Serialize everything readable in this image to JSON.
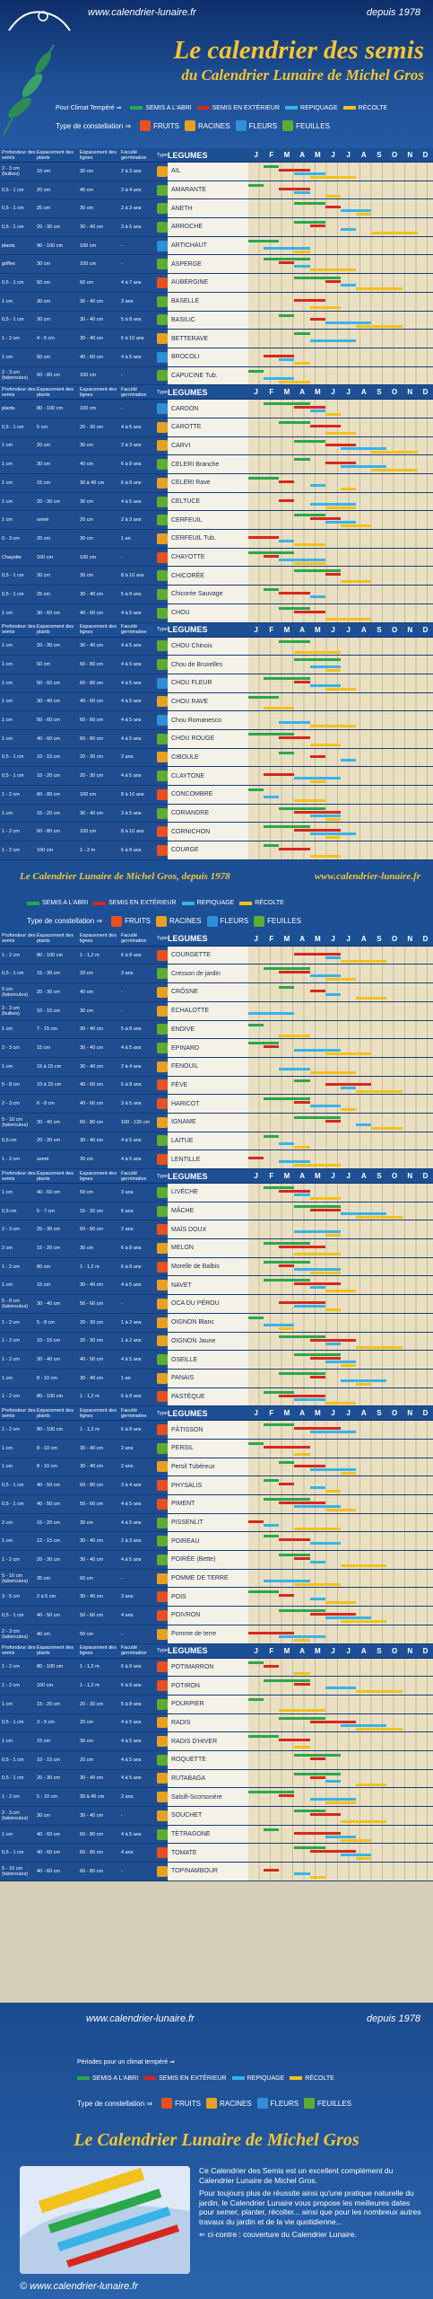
{
  "header": {
    "site": "www.calendrier-lunaire.fr",
    "since": "depuis 1978",
    "title_line1": "Le calendrier des semis",
    "title_line2": "du Calendrier Lunaire de Michel Gros"
  },
  "legend": {
    "climate_label": "Pour Climat Tempéré ⇒",
    "periods": [
      {
        "label": "SEMIS A L'ABRI",
        "color": "#2aa84a"
      },
      {
        "label": "SEMIS EN EXTÉRIEUR",
        "color": "#d6281f"
      },
      {
        "label": "REPIQUAGE",
        "color": "#38b3e6"
      },
      {
        "label": "RÉCOLTE",
        "color": "#f2c21c"
      }
    ],
    "constellation_label": "Type de constellation ⇒",
    "constellations": [
      {
        "label": "FRUITS",
        "color": "#e8501f"
      },
      {
        "label": "RACINES",
        "color": "#e8a11f"
      },
      {
        "label": "FLEURS",
        "color": "#2f8fd8"
      },
      {
        "label": "FEUILLES",
        "color": "#5cae2f"
      }
    ]
  },
  "table_header": {
    "depth": "Profondeur des semis",
    "spacing_plants": "Espacement des plants",
    "spacing_rows": "Espacement des lignes",
    "germination": "Faculté germinative",
    "type": "Type",
    "vegetables": "LEGUMES",
    "months": [
      "J",
      "F",
      "M",
      "A",
      "M",
      "J",
      "J",
      "A",
      "S",
      "O",
      "N",
      "D"
    ]
  },
  "rows": [
    {
      "d": "2 - 3 cm (bulbes)",
      "p": "10 cm",
      "l": "30 cm",
      "g": "2 à 3 ans",
      "t": "#e8a11f",
      "n": "AIL"
    },
    {
      "d": "0,5 - 1 cm",
      "p": "20 cm",
      "l": "40 cm",
      "g": "3 à 4 ans",
      "t": "#5cae2f",
      "n": "AMARANTE"
    },
    {
      "d": "0,5 - 1 cm",
      "p": "25 cm",
      "l": "30 cm",
      "g": "2 à 3 ans",
      "t": "#5cae2f",
      "n": "ANETH"
    },
    {
      "d": "0,5 - 1 cm",
      "p": "20 - 30 cm",
      "l": "30 - 40 cm",
      "g": "3 à 5 ans",
      "t": "#5cae2f",
      "n": "ARROCHE"
    },
    {
      "d": "plants",
      "p": "90 - 100 cm",
      "l": "100 cm",
      "g": "-",
      "t": "#2f8fd8",
      "n": "ARTICHAUT"
    },
    {
      "d": "griffes",
      "p": "30 cm",
      "l": "100 cm",
      "g": "-",
      "t": "#5cae2f",
      "n": "ASPERGE"
    },
    {
      "d": "0,5 - 1 cm",
      "p": "50 cm",
      "l": "60 cm",
      "g": "4 à 7 ans",
      "t": "#e8501f",
      "n": "AUBERGINE"
    },
    {
      "d": "1 cm",
      "p": "30 cm",
      "l": "30 - 40 cm",
      "g": "3 ans",
      "t": "#5cae2f",
      "n": "BASELLE"
    },
    {
      "d": "0,5 - 1 cm",
      "p": "30 cm",
      "l": "30 - 40 cm",
      "g": "5 à 8 ans",
      "t": "#5cae2f",
      "n": "BASILIC"
    },
    {
      "d": "1 - 2 cm",
      "p": "4 - 5 cm",
      "l": "30 - 40 cm",
      "g": "6 à 10 ans",
      "t": "#e8a11f",
      "n": "BETTERAVE"
    },
    {
      "d": "1 cm",
      "p": "50 cm",
      "l": "40 - 60 cm",
      "g": "4 à 5 ans",
      "t": "#2f8fd8",
      "n": "BROCOLI"
    },
    {
      "d": "2 - 3 cm (tubercules)",
      "p": "60 - 80 cm",
      "l": "100 cm",
      "g": "-",
      "t": "#5cae2f",
      "n": "CAPUCINE Tub."
    }
  ],
  "rows2": [
    {
      "d": "plants",
      "p": "80 - 100 cm",
      "l": "100 cm",
      "g": "-",
      "t": "#2f8fd8",
      "n": "CARDON"
    },
    {
      "d": "0,5 - 1 cm",
      "p": "5 cm",
      "l": "20 - 30 cm",
      "g": "4 à 5 ans",
      "t": "#e8a11f",
      "n": "CAROTTE"
    },
    {
      "d": "1 cm",
      "p": "20 cm",
      "l": "30 cm",
      "g": "2 à 3 ans",
      "t": "#e8a11f",
      "n": "CARVI"
    },
    {
      "d": "1 cm",
      "p": "30 cm",
      "l": "40 cm",
      "g": "6 à 8 ans",
      "t": "#5cae2f",
      "n": "CELERI Branche"
    },
    {
      "d": "1 cm",
      "p": "15 cm",
      "l": "30 à 40 cm",
      "g": "6 à 8 ans",
      "t": "#e8a11f",
      "n": "CELERI Rave"
    },
    {
      "d": "1 cm",
      "p": "20 - 30 cm",
      "l": "30 cm",
      "g": "4 à 5 ans",
      "t": "#5cae2f",
      "n": "CELTUCE"
    },
    {
      "d": "1 cm",
      "p": "semé",
      "l": "20 cm",
      "g": "2 à 3 ans",
      "t": "#5cae2f",
      "n": "CERFEUIL"
    },
    {
      "d": "0 - 3 cm",
      "p": "20 cm",
      "l": "30 cm",
      "g": "1 an",
      "t": "#e8a11f",
      "n": "CERFEUIL Tub."
    },
    {
      "d": "Chayotte",
      "p": "100 cm",
      "l": "100 cm",
      "g": "-",
      "t": "#e8501f",
      "n": "CHAYOTTE"
    },
    {
      "d": "0,5 - 1 cm",
      "p": "30 cm",
      "l": "30 cm",
      "g": "8 à 10 ans",
      "t": "#5cae2f",
      "n": "CHICORÉE"
    },
    {
      "d": "0,5 - 1 cm",
      "p": "25 cm",
      "l": "30 - 40 cm",
      "g": "5 à 8 ans",
      "t": "#5cae2f",
      "n": "Chicorée Sauvage"
    },
    {
      "d": "1 cm",
      "p": "30 - 60 cm",
      "l": "40 - 60 cm",
      "g": "4 à 5 ans",
      "t": "#5cae2f",
      "n": "CHOU"
    }
  ],
  "rows3": [
    {
      "d": "1 cm",
      "p": "20 - 30 cm",
      "l": "30 - 40 cm",
      "g": "4 à 5 ans",
      "t": "#5cae2f",
      "n": "CHOU Chinois"
    },
    {
      "d": "1 cm",
      "p": "50 cm",
      "l": "60 - 80 cm",
      "g": "4 à 5 ans",
      "t": "#5cae2f",
      "n": "Chou de Bruxelles"
    },
    {
      "d": "1 cm",
      "p": "50 - 60 cm",
      "l": "60 - 80 cm",
      "g": "4 à 5 ans",
      "t": "#2f8fd8",
      "n": "CHOU FLEUR"
    },
    {
      "d": "1 cm",
      "p": "30 - 40 cm",
      "l": "40 - 60 cm",
      "g": "4 à 5 ans",
      "t": "#e8a11f",
      "n": "CHOU RAVE"
    },
    {
      "d": "1 cm",
      "p": "50 - 60 cm",
      "l": "60 - 80 cm",
      "g": "4 à 5 ans",
      "t": "#2f8fd8",
      "n": "Chou Romanesco"
    },
    {
      "d": "1 cm",
      "p": "40 - 60 cm",
      "l": "60 - 80 cm",
      "g": "4 à 5 ans",
      "t": "#5cae2f",
      "n": "CHOU ROUGE"
    },
    {
      "d": "0,5 - 1 cm",
      "p": "10 - 15 cm",
      "l": "20 - 30 cm",
      "g": "2 ans",
      "t": "#e8a11f",
      "n": "CIBOULE"
    },
    {
      "d": "0,5 - 1 cm",
      "p": "10 - 20 cm",
      "l": "20 - 30 cm",
      "g": "4 à 5 ans",
      "t": "#5cae2f",
      "n": "CLAYTONE"
    },
    {
      "d": "1 - 2 cm",
      "p": "60 - 80 cm",
      "l": "100 cm",
      "g": "8 à 10 ans",
      "t": "#e8501f",
      "n": "CONCOMBRE"
    },
    {
      "d": "1 cm",
      "p": "15 - 20 cm",
      "l": "30 - 40 cm",
      "g": "3 à 5 ans",
      "t": "#5cae2f",
      "n": "CORIANDRE"
    },
    {
      "d": "1 - 2 cm",
      "p": "60 - 80 cm",
      "l": "100 cm",
      "g": "8 à 10 ans",
      "t": "#e8501f",
      "n": "CORNICHON"
    },
    {
      "d": "1 - 2 cm",
      "p": "100 cm",
      "l": "1 - 2 m",
      "g": "6 à 8 ans",
      "t": "#e8501f",
      "n": "COURGE"
    }
  ],
  "banner": {
    "left": "Le Calendrier Lunaire de Michel Gros, depuis 1978",
    "right": "www.calendrier-lunaire.fr"
  },
  "rows4": [
    {
      "d": "1 - 2 cm",
      "p": "80 - 100 cm",
      "l": "1 - 1,2 m",
      "g": "6 à 8 ans",
      "t": "#e8501f",
      "n": "COURGETTE"
    },
    {
      "d": "0,5 - 1 cm",
      "p": "15 - 30 cm",
      "l": "20 cm",
      "g": "3 ans",
      "t": "#5cae2f",
      "n": "Cresson de jardin"
    },
    {
      "d": "5 cm (tubercules)",
      "p": "20 - 30 cm",
      "l": "40 cm",
      "g": "-",
      "t": "#e8a11f",
      "n": "CRÔSNE"
    },
    {
      "d": "2 - 3 cm (bulbes)",
      "p": "10 - 15 cm",
      "l": "30 cm",
      "g": "-",
      "t": "#e8a11f",
      "n": "ECHALOTTE"
    },
    {
      "d": "1 cm",
      "p": "7 - 15 cm",
      "l": "30 - 40 cm",
      "g": "5 à 8 ans",
      "t": "#5cae2f",
      "n": "ENDIVE"
    },
    {
      "d": "2 - 3 cm",
      "p": "15 cm",
      "l": "30 - 40 cm",
      "g": "4 à 5 ans",
      "t": "#5cae2f",
      "n": "EPINARD"
    },
    {
      "d": "1 cm",
      "p": "15 à 15 cm",
      "l": "30 - 40 cm",
      "g": "2 à 4 ans",
      "t": "#e8a11f",
      "n": "FENOUIL"
    },
    {
      "d": "5 - 8 cm",
      "p": "10 à 15 cm",
      "l": "40 - 60 cm",
      "g": "6 à 8 ans",
      "t": "#e8501f",
      "n": "FÈVE"
    },
    {
      "d": "2 - 3 cm",
      "p": "6 - 8 cm",
      "l": "40 - 60 cm",
      "g": "3 à 5 ans",
      "t": "#e8501f",
      "n": "HARICOT"
    },
    {
      "d": "5 - 10 cm (tubercules)",
      "p": "30 - 40 cm",
      "l": "60 - 80 cm",
      "g": "100 - 120 cm",
      "t": "#e8a11f",
      "n": "IGNAME"
    },
    {
      "d": "0,5 cm",
      "p": "20 - 30 cm",
      "l": "30 - 40 cm",
      "g": "4 à 5 ans",
      "t": "#5cae2f",
      "n": "LAITUE"
    },
    {
      "d": "1 - 2 cm",
      "p": "semé",
      "l": "30 cm",
      "g": "4 à 5 ans",
      "t": "#e8501f",
      "n": "LENTILLE"
    }
  ],
  "rows5": [
    {
      "d": "1 cm",
      "p": "40 - 60 cm",
      "l": "50 cm",
      "g": "3 ans",
      "t": "#5cae2f",
      "n": "LIVÈCHE"
    },
    {
      "d": "0,5 cm",
      "p": "5 - 7 cm",
      "l": "15 - 20 cm",
      "g": "5 ans",
      "t": "#5cae2f",
      "n": "MÂCHE"
    },
    {
      "d": "2 - 3 cm",
      "p": "25 - 30 cm",
      "l": "60 - 80 cm",
      "g": "2 ans",
      "t": "#e8501f",
      "n": "MAÏS DOUX"
    },
    {
      "d": "2 cm",
      "p": "15 - 20 cm",
      "l": "30 cm",
      "g": "6 à 8 ans",
      "t": "#e8a11f",
      "n": "MELON"
    },
    {
      "d": "1 - 2 cm",
      "p": "80 cm",
      "l": "1 - 1,2 m",
      "g": "6 à 8 ans",
      "t": "#e8501f",
      "n": "Morelle de Balbis"
    },
    {
      "d": "1 cm",
      "p": "15 cm",
      "l": "30 - 40 cm",
      "g": "4 à 5 ans",
      "t": "#e8a11f",
      "n": "NAVET"
    },
    {
      "d": "5 - 8 cm (tubercules)",
      "p": "30 - 40 cm",
      "l": "50 - 60 cm",
      "g": "-",
      "t": "#e8a11f",
      "n": "OCA DU PÉROU"
    },
    {
      "d": "1 - 2 cm",
      "p": "5 - 8 cm",
      "l": "20 - 30 cm",
      "g": "1 à 2 ans",
      "t": "#e8a11f",
      "n": "OIGNON Blanc"
    },
    {
      "d": "1 - 2 cm",
      "p": "10 - 15 cm",
      "l": "20 - 30 cm",
      "g": "1 à 2 ans",
      "t": "#e8a11f",
      "n": "OIGNON Jaune"
    },
    {
      "d": "1 - 2 cm",
      "p": "30 - 40 cm",
      "l": "40 - 50 cm",
      "g": "4 à 5 ans",
      "t": "#5cae2f",
      "n": "OSEILLE"
    },
    {
      "d": "1 cm",
      "p": "8 - 10 cm",
      "l": "30 - 40 cm",
      "g": "1 an",
      "t": "#e8a11f",
      "n": "PANAIS"
    },
    {
      "d": "1 - 2 cm",
      "p": "80 - 100 cm",
      "l": "1 - 1,2 m",
      "g": "6 à 8 ans",
      "t": "#e8501f",
      "n": "PASTÈQUE"
    }
  ],
  "rows6": [
    {
      "d": "1 - 2 cm",
      "p": "80 - 100 cm",
      "l": "1 - 1,2 m",
      "g": "6 à 8 ans",
      "t": "#e8501f",
      "n": "PÂTISSON"
    },
    {
      "d": "1 cm",
      "p": "8 - 10 cm",
      "l": "30 - 40 cm",
      "g": "2 ans",
      "t": "#5cae2f",
      "n": "PERSIL"
    },
    {
      "d": "1 cm",
      "p": "8 - 10 cm",
      "l": "30 - 40 cm",
      "g": "2 ans",
      "t": "#e8a11f",
      "n": "Persil Tubéreux"
    },
    {
      "d": "0,5 - 1 cm",
      "p": "40 - 50 cm",
      "l": "60 - 80 cm",
      "g": "3 à 4 ans",
      "t": "#e8501f",
      "n": "PHYSALIS"
    },
    {
      "d": "0,5 - 1 cm",
      "p": "40 - 50 cm",
      "l": "50 - 60 cm",
      "g": "4 à 5 ans",
      "t": "#e8501f",
      "n": "PIMENT"
    },
    {
      "d": "2 cm",
      "p": "15 - 20 cm",
      "l": "30 cm",
      "g": "4 à 5 ans",
      "t": "#5cae2f",
      "n": "PISSENLIT"
    },
    {
      "d": "1 cm",
      "p": "12 - 15 cm",
      "l": "30 - 40 cm",
      "g": "2 à 3 ans",
      "t": "#5cae2f",
      "n": "POIREAU"
    },
    {
      "d": "1 - 2 cm",
      "p": "20 - 30 cm",
      "l": "30 - 40 cm",
      "g": "4 à 5 ans",
      "t": "#5cae2f",
      "n": "POIRÉE (Bette)"
    },
    {
      "d": "5 - 10 cm (tubercules)",
      "p": "35 cm",
      "l": "60 cm",
      "g": "-",
      "t": "#e8a11f",
      "n": "POMME DE TERRE"
    },
    {
      "d": "3 - 5 cm",
      "p": "2 à 5 cm",
      "l": "30 - 40 cm",
      "g": "3 ans",
      "t": "#e8501f",
      "n": "POIS"
    },
    {
      "d": "0,5 - 1 cm",
      "p": "40 - 50 cm",
      "l": "50 - 60 cm",
      "g": "4 ans",
      "t": "#e8501f",
      "n": "POIVRON"
    },
    {
      "d": "2 - 3 cm (tubercules)",
      "p": "40 cm",
      "l": "50 cm",
      "g": "-",
      "t": "#e8a11f",
      "n": "Pomme de terre"
    }
  ],
  "rows7": [
    {
      "d": "1 - 2 cm",
      "p": "80 - 100 cm",
      "l": "1 - 1,2 m",
      "g": "6 à 8 ans",
      "t": "#e8501f",
      "n": "POTIMARRON"
    },
    {
      "d": "1 - 2 cm",
      "p": "100 cm",
      "l": "1 - 1,2 m",
      "g": "6 à 8 ans",
      "t": "#e8501f",
      "n": "POTIRON"
    },
    {
      "d": "1 cm",
      "p": "15 - 20 cm",
      "l": "20 - 30 cm",
      "g": "5 à 8 ans",
      "t": "#5cae2f",
      "n": "POURPIER"
    },
    {
      "d": "0,5 - 1 cm",
      "p": "3 - 5 cm",
      "l": "20 cm",
      "g": "4 à 5 ans",
      "t": "#e8a11f",
      "n": "RADIS"
    },
    {
      "d": "1 cm",
      "p": "15 cm",
      "l": "30 cm",
      "g": "4 à 5 ans",
      "t": "#e8a11f",
      "n": "RADIS D'HIVER"
    },
    {
      "d": "0,5 - 1 cm",
      "p": "10 - 15 cm",
      "l": "20 cm",
      "g": "4 à 5 ans",
      "t": "#5cae2f",
      "n": "ROQUETTE"
    },
    {
      "d": "0,5 - 1 cm",
      "p": "20 - 30 cm",
      "l": "30 - 40 cm",
      "g": "4 à 5 ans",
      "t": "#e8a11f",
      "n": "RUTABAGA"
    },
    {
      "d": "1 - 2 cm",
      "p": "5 - 10 cm",
      "l": "30 à 40 cm",
      "g": "2 ans",
      "t": "#e8a11f",
      "n": "Salsifi-Scorsonère"
    },
    {
      "d": "2 - 3 cm (tubercules)",
      "p": "30 cm",
      "l": "30 - 40 cm",
      "g": "-",
      "t": "#e8a11f",
      "n": "SOUCHET"
    },
    {
      "d": "1 cm",
      "p": "40 - 60 cm",
      "l": "60 - 80 cm",
      "g": "4 à 5 ans",
      "t": "#5cae2f",
      "n": "TÉTRAGONE"
    },
    {
      "d": "0,5 - 1 cm",
      "p": "40 - 60 cm",
      "l": "60 - 80 cm",
      "g": "4 ans",
      "t": "#e8501f",
      "n": "TOMATE"
    },
    {
      "d": "5 - 10 cm (tubercules)",
      "p": "40 - 60 cm",
      "l": "60 - 80 cm",
      "g": "-",
      "t": "#e8a11f",
      "n": "TOPINAMBOUR"
    }
  ],
  "footer": {
    "site": "www.calendrier-lunaire.fr",
    "since": "depuis 1978",
    "periods_label": "Périodes pour un climat tempéré ⇒",
    "constellation_label": "Type de constellation ⇒",
    "title": "Le Calendrier Lunaire de Michel Gros",
    "p1": "Ce Calendrier des Semis est un excellent complément du Calendrier Lunaire de Michel Gros.",
    "p2": "Pour toujours plus de réussite ainsi qu'une pratique naturelle du jardin, le Calendrier Lunaire vous propose les meilleures dates pour semer, planter, récolter... ainsi que pour les nombreux autres travaux du jardin et de la vie quotidienne...",
    "p3": "⇐ ci-contre : couverture du Calendrier Lunaire.",
    "copyright": "© www.calendrier-lunaire.fr"
  }
}
